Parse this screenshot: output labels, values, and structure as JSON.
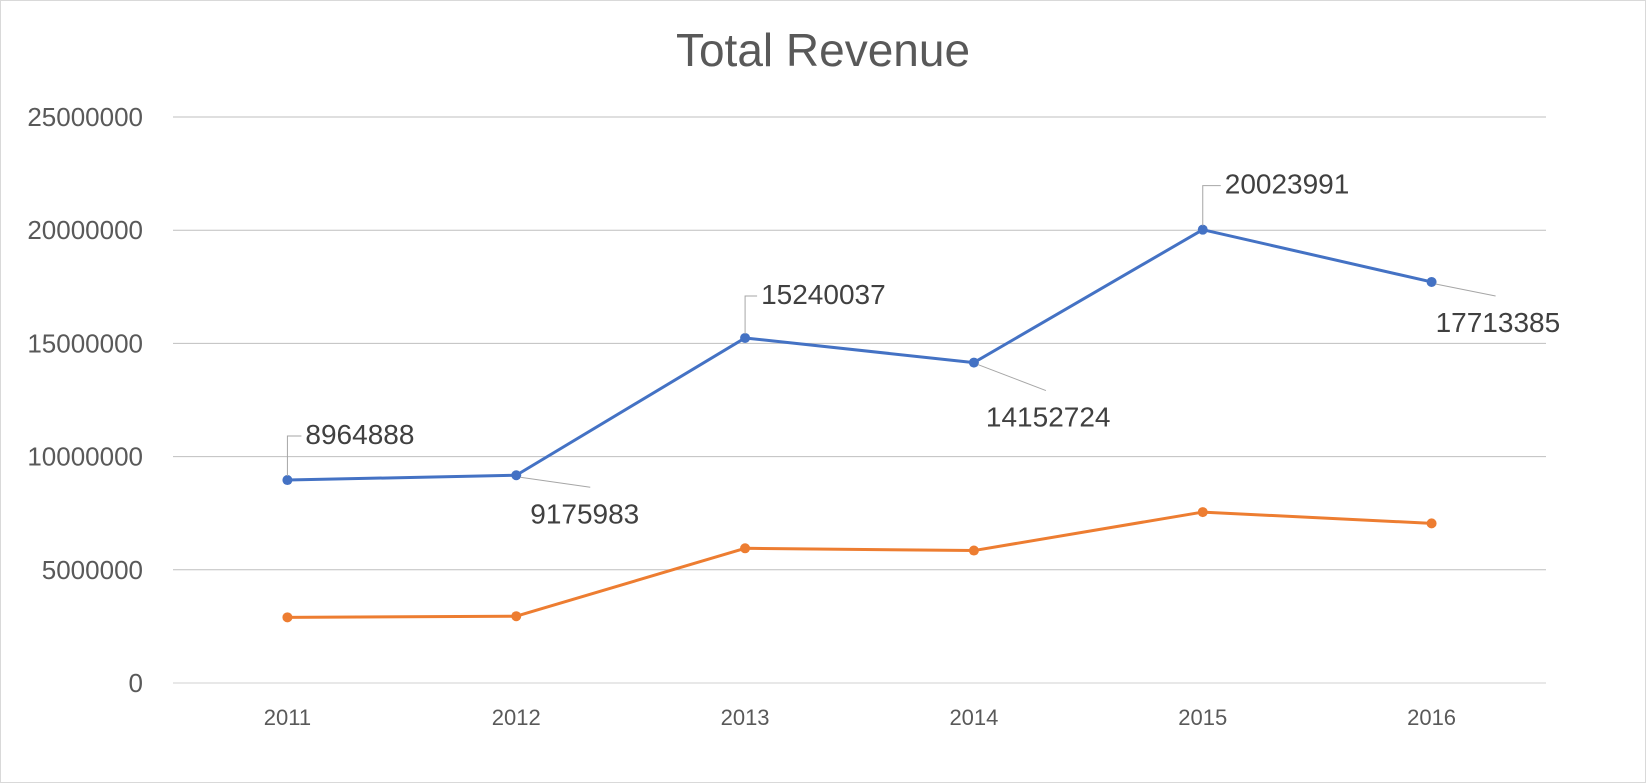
{
  "chart_data": {
    "type": "line",
    "title": "Total Revenue",
    "xlabel": "",
    "ylabel": "",
    "x": [
      "2011",
      "2012",
      "2013",
      "2014",
      "2015",
      "2016"
    ],
    "ylim": [
      0,
      25000000
    ],
    "yticks": [
      "0",
      "5000000",
      "10000000",
      "15000000",
      "20000000",
      "25000000"
    ],
    "grid": true,
    "series": [
      {
        "values": [
          8964888,
          9175983,
          15240037,
          14152724,
          20023991,
          17713385
        ],
        "data_labels": [
          "8964888",
          "9175983",
          "15240037",
          "14152724",
          "20023991",
          "17713385"
        ],
        "color": "#4472c4"
      },
      {
        "values": [
          2900000,
          2950000,
          5950000,
          5850000,
          7550000,
          7050000
        ],
        "color": "#ed7d31"
      }
    ]
  }
}
